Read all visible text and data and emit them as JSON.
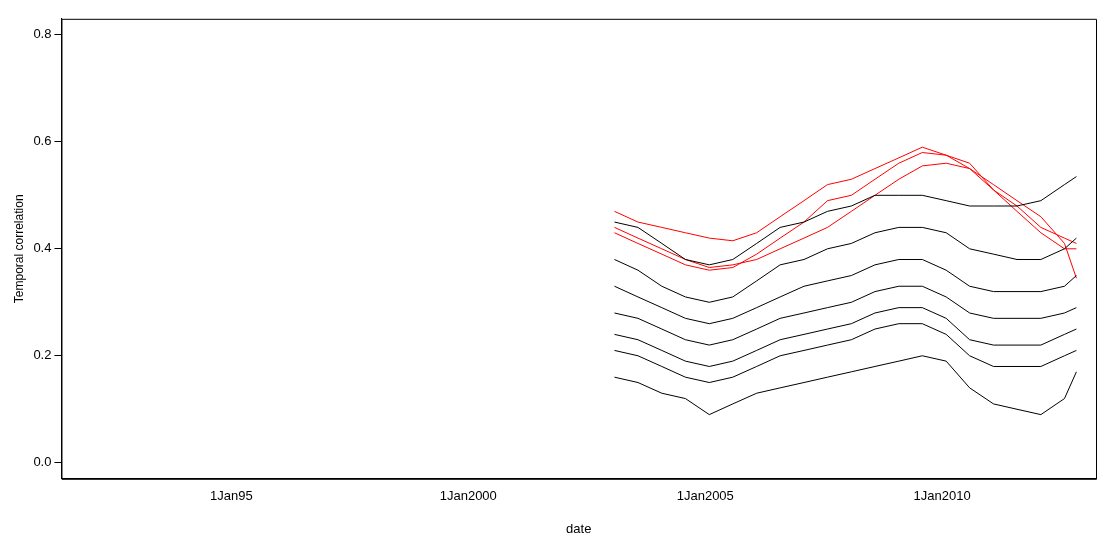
{
  "chart_data": {
    "type": "line",
    "xlabel": "date",
    "ylabel": "Temporal correlation",
    "x": [
      "2003-02",
      "2003-08",
      "2004-02",
      "2004-08",
      "2005-02",
      "2005-08",
      "2006-02",
      "2006-08",
      "2007-02",
      "2007-08",
      "2008-02",
      "2008-08",
      "2009-02",
      "2009-08",
      "2010-02",
      "2010-08",
      "2011-02",
      "2011-08",
      "2012-02",
      "2012-08",
      "2012-11"
    ],
    "series": [
      {
        "color": "#000000",
        "values": [
          0.45,
          0.44,
          0.41,
          0.38,
          0.37,
          0.38,
          0.41,
          0.44,
          0.45,
          0.47,
          0.48,
          0.5,
          0.5,
          0.5,
          0.49,
          0.48,
          0.48,
          0.48,
          0.49,
          0.52,
          0.535
        ]
      },
      {
        "color": "#000000",
        "values": [
          0.38,
          0.36,
          0.33,
          0.31,
          0.3,
          0.31,
          0.34,
          0.37,
          0.38,
          0.4,
          0.41,
          0.43,
          0.44,
          0.44,
          0.43,
          0.4,
          0.39,
          0.38,
          0.38,
          0.4,
          0.42
        ]
      },
      {
        "color": "#000000",
        "values": [
          0.33,
          0.31,
          0.29,
          0.27,
          0.26,
          0.27,
          0.29,
          0.31,
          0.33,
          0.34,
          0.35,
          0.37,
          0.38,
          0.38,
          0.36,
          0.33,
          0.32,
          0.32,
          0.32,
          0.33,
          0.35
        ]
      },
      {
        "color": "#000000",
        "values": [
          0.28,
          0.27,
          0.25,
          0.23,
          0.22,
          0.23,
          0.25,
          0.27,
          0.28,
          0.29,
          0.3,
          0.32,
          0.33,
          0.33,
          0.31,
          0.28,
          0.27,
          0.27,
          0.27,
          0.28,
          0.29
        ]
      },
      {
        "color": "#000000",
        "values": [
          0.24,
          0.23,
          0.21,
          0.19,
          0.18,
          0.19,
          0.21,
          0.23,
          0.24,
          0.25,
          0.26,
          0.28,
          0.29,
          0.29,
          0.27,
          0.23,
          0.22,
          0.22,
          0.22,
          0.24,
          0.25
        ]
      },
      {
        "color": "#000000",
        "values": [
          0.21,
          0.2,
          0.18,
          0.16,
          0.15,
          0.16,
          0.18,
          0.2,
          0.21,
          0.22,
          0.23,
          0.25,
          0.26,
          0.26,
          0.24,
          0.2,
          0.18,
          0.18,
          0.18,
          0.2,
          0.21
        ]
      },
      {
        "color": "#000000",
        "values": [
          0.16,
          0.15,
          0.13,
          0.12,
          0.09,
          0.11,
          0.13,
          0.14,
          0.15,
          0.16,
          0.17,
          0.18,
          0.19,
          0.2,
          0.19,
          0.14,
          0.11,
          0.1,
          0.09,
          0.12,
          0.17
        ]
      },
      {
        "color": "#ff0000",
        "values": [
          0.47,
          0.45,
          0.44,
          0.43,
          0.42,
          0.415,
          0.43,
          0.46,
          0.49,
          0.52,
          0.53,
          0.55,
          0.57,
          0.59,
          0.575,
          0.55,
          0.51,
          0.48,
          0.44,
          0.42,
          0.41
        ]
      },
      {
        "color": "#ff0000",
        "values": [
          0.43,
          0.41,
          0.39,
          0.37,
          0.36,
          0.365,
          0.39,
          0.42,
          0.45,
          0.49,
          0.5,
          0.53,
          0.56,
          0.58,
          0.575,
          0.56,
          0.51,
          0.47,
          0.43,
          0.4,
          0.4
        ]
      },
      {
        "color": "#ff0000",
        "values": [
          0.44,
          0.42,
          0.4,
          0.38,
          0.365,
          0.37,
          0.38,
          0.4,
          0.42,
          0.44,
          0.47,
          0.5,
          0.53,
          0.555,
          0.56,
          0.55,
          0.52,
          0.49,
          0.46,
          0.41,
          0.345
        ]
      }
    ],
    "xlim": [
      "1991-06",
      "2013-04"
    ],
    "xticks": [
      {
        "value": "1995-01-01",
        "label": "1Jan95"
      },
      {
        "value": "2000-01-01",
        "label": "1Jan2000"
      },
      {
        "value": "2005-01-01",
        "label": "1Jan2005"
      },
      {
        "value": "2010-01-01",
        "label": "1Jan2010"
      }
    ],
    "ylim": [
      -0.03,
      0.83
    ],
    "yticks": [
      {
        "value": 0,
        "label": "0.0"
      },
      0.2,
      0.4,
      0.6,
      0.8
    ],
    "grid": false,
    "legend": false,
    "marker": "none",
    "line_style": "solid"
  }
}
